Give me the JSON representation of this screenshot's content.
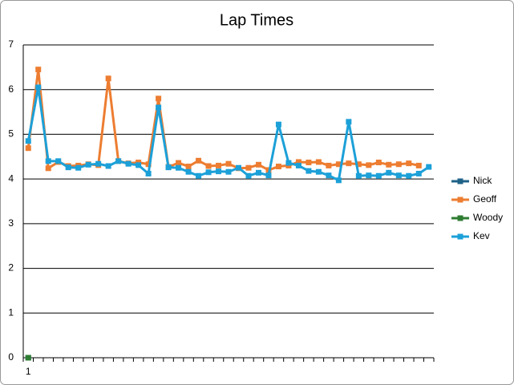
{
  "chart_data": {
    "type": "line",
    "title": "Lap Times",
    "categories": [
      "1",
      null,
      null,
      null,
      null,
      null,
      null,
      null,
      null,
      null,
      null,
      null,
      null,
      null,
      null,
      null,
      null,
      null,
      null,
      null,
      null,
      null,
      null,
      null,
      null,
      null,
      null,
      null,
      null,
      null,
      null,
      null,
      null,
      null,
      null,
      null,
      null,
      null,
      null,
      null,
      null
    ],
    "series": [
      {
        "name": "Nick",
        "color": "#1f6287",
        "values": [
          0,
          null,
          null,
          null,
          null,
          null,
          null,
          null,
          null,
          null,
          null,
          null,
          null,
          null,
          null,
          null,
          null,
          null,
          null,
          null,
          null,
          null,
          null,
          null,
          null,
          null,
          null,
          null,
          null,
          null,
          null,
          null,
          null,
          null,
          null,
          null,
          null,
          null,
          null,
          null,
          null
        ]
      },
      {
        "name": "Geoff",
        "color": "#ed7d31",
        "values": [
          4.69,
          6.45,
          4.24,
          4.38,
          4.29,
          4.3,
          4.33,
          4.31,
          6.25,
          4.4,
          4.35,
          4.37,
          4.33,
          5.8,
          4.27,
          4.36,
          4.28,
          4.41,
          4.29,
          4.3,
          4.34,
          4.24,
          4.25,
          4.32,
          4.2,
          4.28,
          4.3,
          4.38,
          4.37,
          4.38,
          4.3,
          4.33,
          4.35,
          4.33,
          4.31,
          4.37,
          4.32,
          4.33,
          4.35,
          4.3,
          null
        ]
      },
      {
        "name": "Woody",
        "color": "#2e7d32",
        "values": [
          0,
          null,
          null,
          null,
          null,
          null,
          null,
          null,
          null,
          null,
          null,
          null,
          null,
          null,
          null,
          null,
          null,
          null,
          null,
          null,
          null,
          null,
          null,
          null,
          null,
          null,
          null,
          null,
          null,
          null,
          null,
          null,
          null,
          null,
          null,
          null,
          null,
          null,
          null,
          null,
          null
        ]
      },
      {
        "name": "Kev",
        "color": "#1ca0d8",
        "values": [
          4.85,
          6.05,
          4.4,
          4.4,
          4.26,
          4.25,
          4.32,
          4.34,
          4.29,
          4.4,
          4.34,
          4.31,
          4.12,
          5.6,
          4.26,
          4.25,
          4.16,
          4.07,
          4.15,
          4.17,
          4.16,
          4.25,
          4.07,
          4.14,
          4.08,
          5.22,
          4.36,
          4.3,
          4.18,
          4.16,
          4.08,
          3.97,
          5.28,
          4.07,
          4.08,
          4.07,
          4.14,
          4.08,
          4.07,
          4.12,
          4.27
        ]
      }
    ],
    "ylim": [
      0,
      7
    ],
    "yticks": [
      0,
      1,
      2,
      3,
      4,
      5,
      6,
      7
    ],
    "grid": true,
    "legend": "right"
  }
}
